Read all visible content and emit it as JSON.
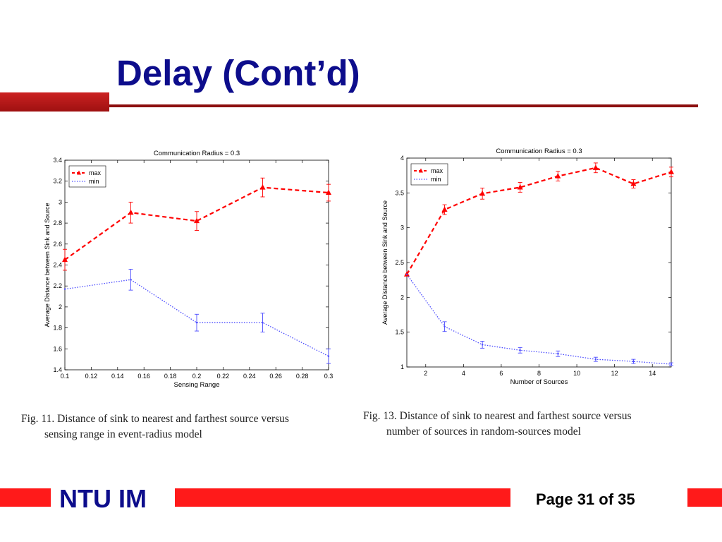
{
  "slide": {
    "title": "Delay (Cont’d)",
    "footer_brand": "NTU IM",
    "page_label": "Page 31 of 35",
    "colors": {
      "title": "#0d0d8c",
      "accent": "#ff1a1a",
      "rule": "#8c0f0f",
      "max_series": "#ff0000",
      "min_series": "#4a4aff"
    }
  },
  "captions": {
    "left": [
      "Fig. 11.   Distance of sink to nearest and farthest source versus",
      "sensing range in event-radius model"
    ],
    "right": [
      "Fig. 13.   Distance of sink to nearest and farthest source versus",
      "number of sources in random-sources model"
    ]
  },
  "chart_data": [
    {
      "type": "line",
      "title": "Communication Radius  = 0.3",
      "xlabel": "Sensing Range",
      "ylabel": "Average Distance between Sink and Source",
      "xlim": [
        0.1,
        0.3
      ],
      "ylim": [
        1.4,
        3.4
      ],
      "xticks": [
        0.1,
        0.12,
        0.14,
        0.16,
        0.18,
        0.2,
        0.22,
        0.24,
        0.26,
        0.28,
        0.3
      ],
      "xtick_labels": [
        "0.1",
        "0.12",
        "0.14",
        "0.16",
        "0.18",
        "0.2",
        "0.22",
        "0.24",
        "0.26",
        "0.28",
        "0.3"
      ],
      "yticks": [
        1.4,
        1.6,
        1.8,
        2,
        2.2,
        2.4,
        2.6,
        2.8,
        3,
        3.2,
        3.4
      ],
      "ytick_labels": [
        "1.4",
        "1.6",
        "1.8",
        "2",
        "2.2",
        "2.4",
        "2.6",
        "2.8",
        "3",
        "3.2",
        "3.4"
      ],
      "legend_position": "top-left",
      "grid": false,
      "series": [
        {
          "name": "max",
          "color": "#ff0000",
          "marker": "triangle",
          "dash": "6,4",
          "x": [
            0.1,
            0.15,
            0.2,
            0.25,
            0.3
          ],
          "y": [
            2.45,
            2.9,
            2.82,
            3.14,
            3.09
          ],
          "err": [
            0.1,
            0.1,
            0.09,
            0.09,
            0.08
          ]
        },
        {
          "name": "min",
          "color": "#4a4aff",
          "marker": "none",
          "dash": "1.5,2",
          "x": [
            0.1,
            0.15,
            0.2,
            0.25,
            0.3
          ],
          "y": [
            2.17,
            2.26,
            1.85,
            1.85,
            1.53
          ],
          "err": [
            0,
            0.1,
            0.08,
            0.09,
            0.07
          ]
        }
      ]
    },
    {
      "type": "line",
      "title": "Communication Radius  = 0.3",
      "xlabel": "Number of Sources",
      "ylabel": "Average Distance between Sink and Source",
      "xlim": [
        1,
        15
      ],
      "ylim": [
        1,
        4
      ],
      "xticks": [
        2,
        4,
        6,
        8,
        10,
        12,
        14
      ],
      "xtick_labels": [
        "2",
        "4",
        "6",
        "8",
        "10",
        "12",
        "14"
      ],
      "yticks": [
        1,
        1.5,
        2,
        2.5,
        3,
        3.5,
        4
      ],
      "ytick_labels": [
        "1",
        "1.5",
        "2",
        "2.5",
        "3",
        "3.5",
        "4"
      ],
      "legend_position": "top-left",
      "grid": false,
      "series": [
        {
          "name": "max",
          "color": "#ff0000",
          "marker": "triangle",
          "dash": "6,4",
          "x": [
            1,
            3,
            5,
            7,
            9,
            11,
            13,
            15
          ],
          "y": [
            2.33,
            3.26,
            3.49,
            3.58,
            3.74,
            3.86,
            3.63,
            3.8
          ],
          "err": [
            0,
            0.07,
            0.08,
            0.07,
            0.07,
            0.07,
            0.06,
            0.07
          ]
        },
        {
          "name": "min",
          "color": "#4a4aff",
          "marker": "none",
          "dash": "1.5,2",
          "x": [
            1,
            3,
            5,
            7,
            9,
            11,
            13,
            15
          ],
          "y": [
            2.33,
            1.58,
            1.32,
            1.24,
            1.19,
            1.11,
            1.08,
            1.04
          ],
          "err": [
            0,
            0.07,
            0.05,
            0.04,
            0.04,
            0.03,
            0.03,
            0.02
          ]
        }
      ]
    }
  ]
}
